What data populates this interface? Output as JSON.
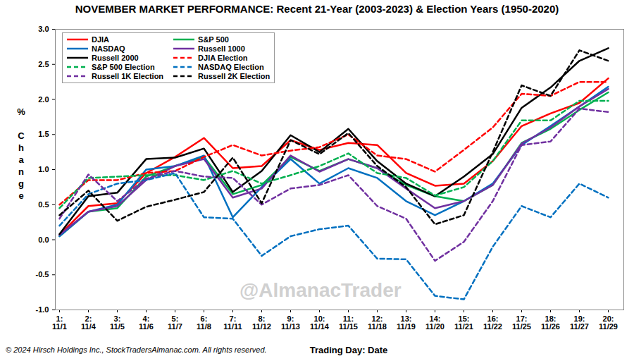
{
  "chart_data": {
    "type": "line",
    "title": "NOVEMBER MARKET PERFORMANCE: Recent 21-Year (2003-2023) & Election Years (1950-2020)",
    "x_label": "Trading Day: Date",
    "y_label": "% Change",
    "watermark": "@AlmanacTrader",
    "copyright": "© 2024 Hirsch Holdings Inc., StockTradersAlmanac.com. All rights reserved.",
    "categories": [
      "1:\n11/1",
      "2:\n11/4",
      "3:\n11/5",
      "4:\n11/6",
      "5:\n11/7",
      "6:\n11/8",
      "7:\n11/11",
      "8:\n11/12",
      "9:\n11/13",
      "10:\n11/14",
      "11:\n11/15",
      "12:\n11/18",
      "13:\n11/19",
      "14:\n11/20",
      "15:\n11/21",
      "16:\n11/22",
      "17:\n11/25",
      "18:\n11/26",
      "19:\n11/27",
      "20:\n11/29"
    ],
    "ylim": [
      -1.0,
      3.0
    ],
    "yticks": [
      {
        "value": -1.0,
        "label": "-1.0"
      },
      -0.5,
      {
        "value": 0,
        "label": "0.0"
      },
      0.5,
      {
        "value": 1.0,
        "label": "1.0"
      },
      1.5,
      {
        "value": 2.0,
        "label": "2.0"
      },
      2.5,
      {
        "value": 3.0,
        "label": "3.0"
      }
    ],
    "grid": false,
    "legend": "top-left",
    "series": [
      {
        "name": "DJIA",
        "color": "#ff0000",
        "line_style": "solid",
        "values": [
          0.07,
          0.48,
          0.52,
          0.95,
          1.18,
          1.45,
          1.02,
          1.05,
          1.42,
          1.28,
          1.38,
          1.35,
          0.95,
          0.77,
          0.8,
          1.12,
          1.62,
          1.8,
          1.95,
          2.3
        ]
      },
      {
        "name": "S&P 500",
        "color": "#00b050",
        "line_style": "solid",
        "values": [
          0.05,
          0.4,
          0.45,
          0.9,
          1.05,
          1.18,
          0.65,
          0.78,
          1.18,
          0.98,
          1.15,
          1.02,
          0.78,
          0.62,
          0.55,
          0.78,
          1.38,
          1.58,
          1.85,
          2.1
        ]
      },
      {
        "name": "NASDAQ",
        "color": "#0070c0",
        "line_style": "solid",
        "values": [
          0.05,
          0.4,
          0.5,
          1.0,
          1.05,
          1.2,
          0.32,
          0.75,
          1.15,
          0.8,
          1.02,
          0.88,
          0.55,
          0.35,
          0.55,
          0.8,
          1.35,
          1.62,
          1.9,
          2.18
        ]
      },
      {
        "name": "Russell 1000",
        "color": "#7030a0",
        "line_style": "solid",
        "values": [
          0.07,
          0.4,
          0.48,
          0.85,
          1.05,
          1.15,
          0.6,
          0.73,
          1.2,
          0.97,
          1.15,
          1.02,
          0.73,
          0.45,
          0.55,
          0.78,
          1.37,
          1.6,
          1.9,
          2.15
        ]
      },
      {
        "name": "Russell 2000",
        "color": "#000000",
        "line_style": "solid",
        "values": [
          0.08,
          0.62,
          0.67,
          1.15,
          1.17,
          1.3,
          0.68,
          0.98,
          1.49,
          1.25,
          1.58,
          1.12,
          0.8,
          0.62,
          0.9,
          1.22,
          1.88,
          2.17,
          2.55,
          2.73
        ]
      },
      {
        "name": "DJIA Election",
        "color": "#ff0000",
        "line_style": "dashed",
        "values": [
          0.5,
          0.85,
          0.85,
          0.95,
          0.98,
          1.18,
          1.35,
          1.2,
          1.27,
          1.32,
          1.5,
          1.2,
          1.15,
          0.97,
          1.28,
          1.6,
          2.08,
          2.05,
          2.25,
          2.25
        ]
      },
      {
        "name": "S&P 500 Election",
        "color": "#00b050",
        "line_style": "dashed",
        "values": [
          0.45,
          0.88,
          0.9,
          0.92,
          0.92,
          0.85,
          0.98,
          0.8,
          0.92,
          1.05,
          1.23,
          0.95,
          0.88,
          0.63,
          0.75,
          1.12,
          1.7,
          1.7,
          1.98,
          1.98
        ]
      },
      {
        "name": "NASDAQ Election",
        "color": "#0070c0",
        "line_style": "dashed",
        "values": [
          0.2,
          0.65,
          0.8,
          0.85,
          0.95,
          0.32,
          0.3,
          -0.23,
          0.05,
          0.15,
          0.2,
          -0.27,
          -0.28,
          -0.8,
          -0.85,
          -0.1,
          0.48,
          0.32,
          0.8,
          0.6
        ]
      },
      {
        "name": "Russell 1K Election",
        "color": "#7030a0",
        "line_style": "dashed",
        "values": [
          0.3,
          0.93,
          0.55,
          0.87,
          0.98,
          0.9,
          0.88,
          0.5,
          0.73,
          0.78,
          0.92,
          0.48,
          0.3,
          -0.3,
          -0.03,
          0.55,
          1.35,
          1.4,
          1.87,
          1.82
        ]
      },
      {
        "name": "Russell 2K Election",
        "color": "#000000",
        "line_style": "dashed",
        "values": [
          0.35,
          0.7,
          0.27,
          0.47,
          0.57,
          0.68,
          1.17,
          0.52,
          1.42,
          1.22,
          1.52,
          1.05,
          0.75,
          0.22,
          0.35,
          1.25,
          2.2,
          2.05,
          2.7,
          2.55
        ]
      }
    ]
  }
}
